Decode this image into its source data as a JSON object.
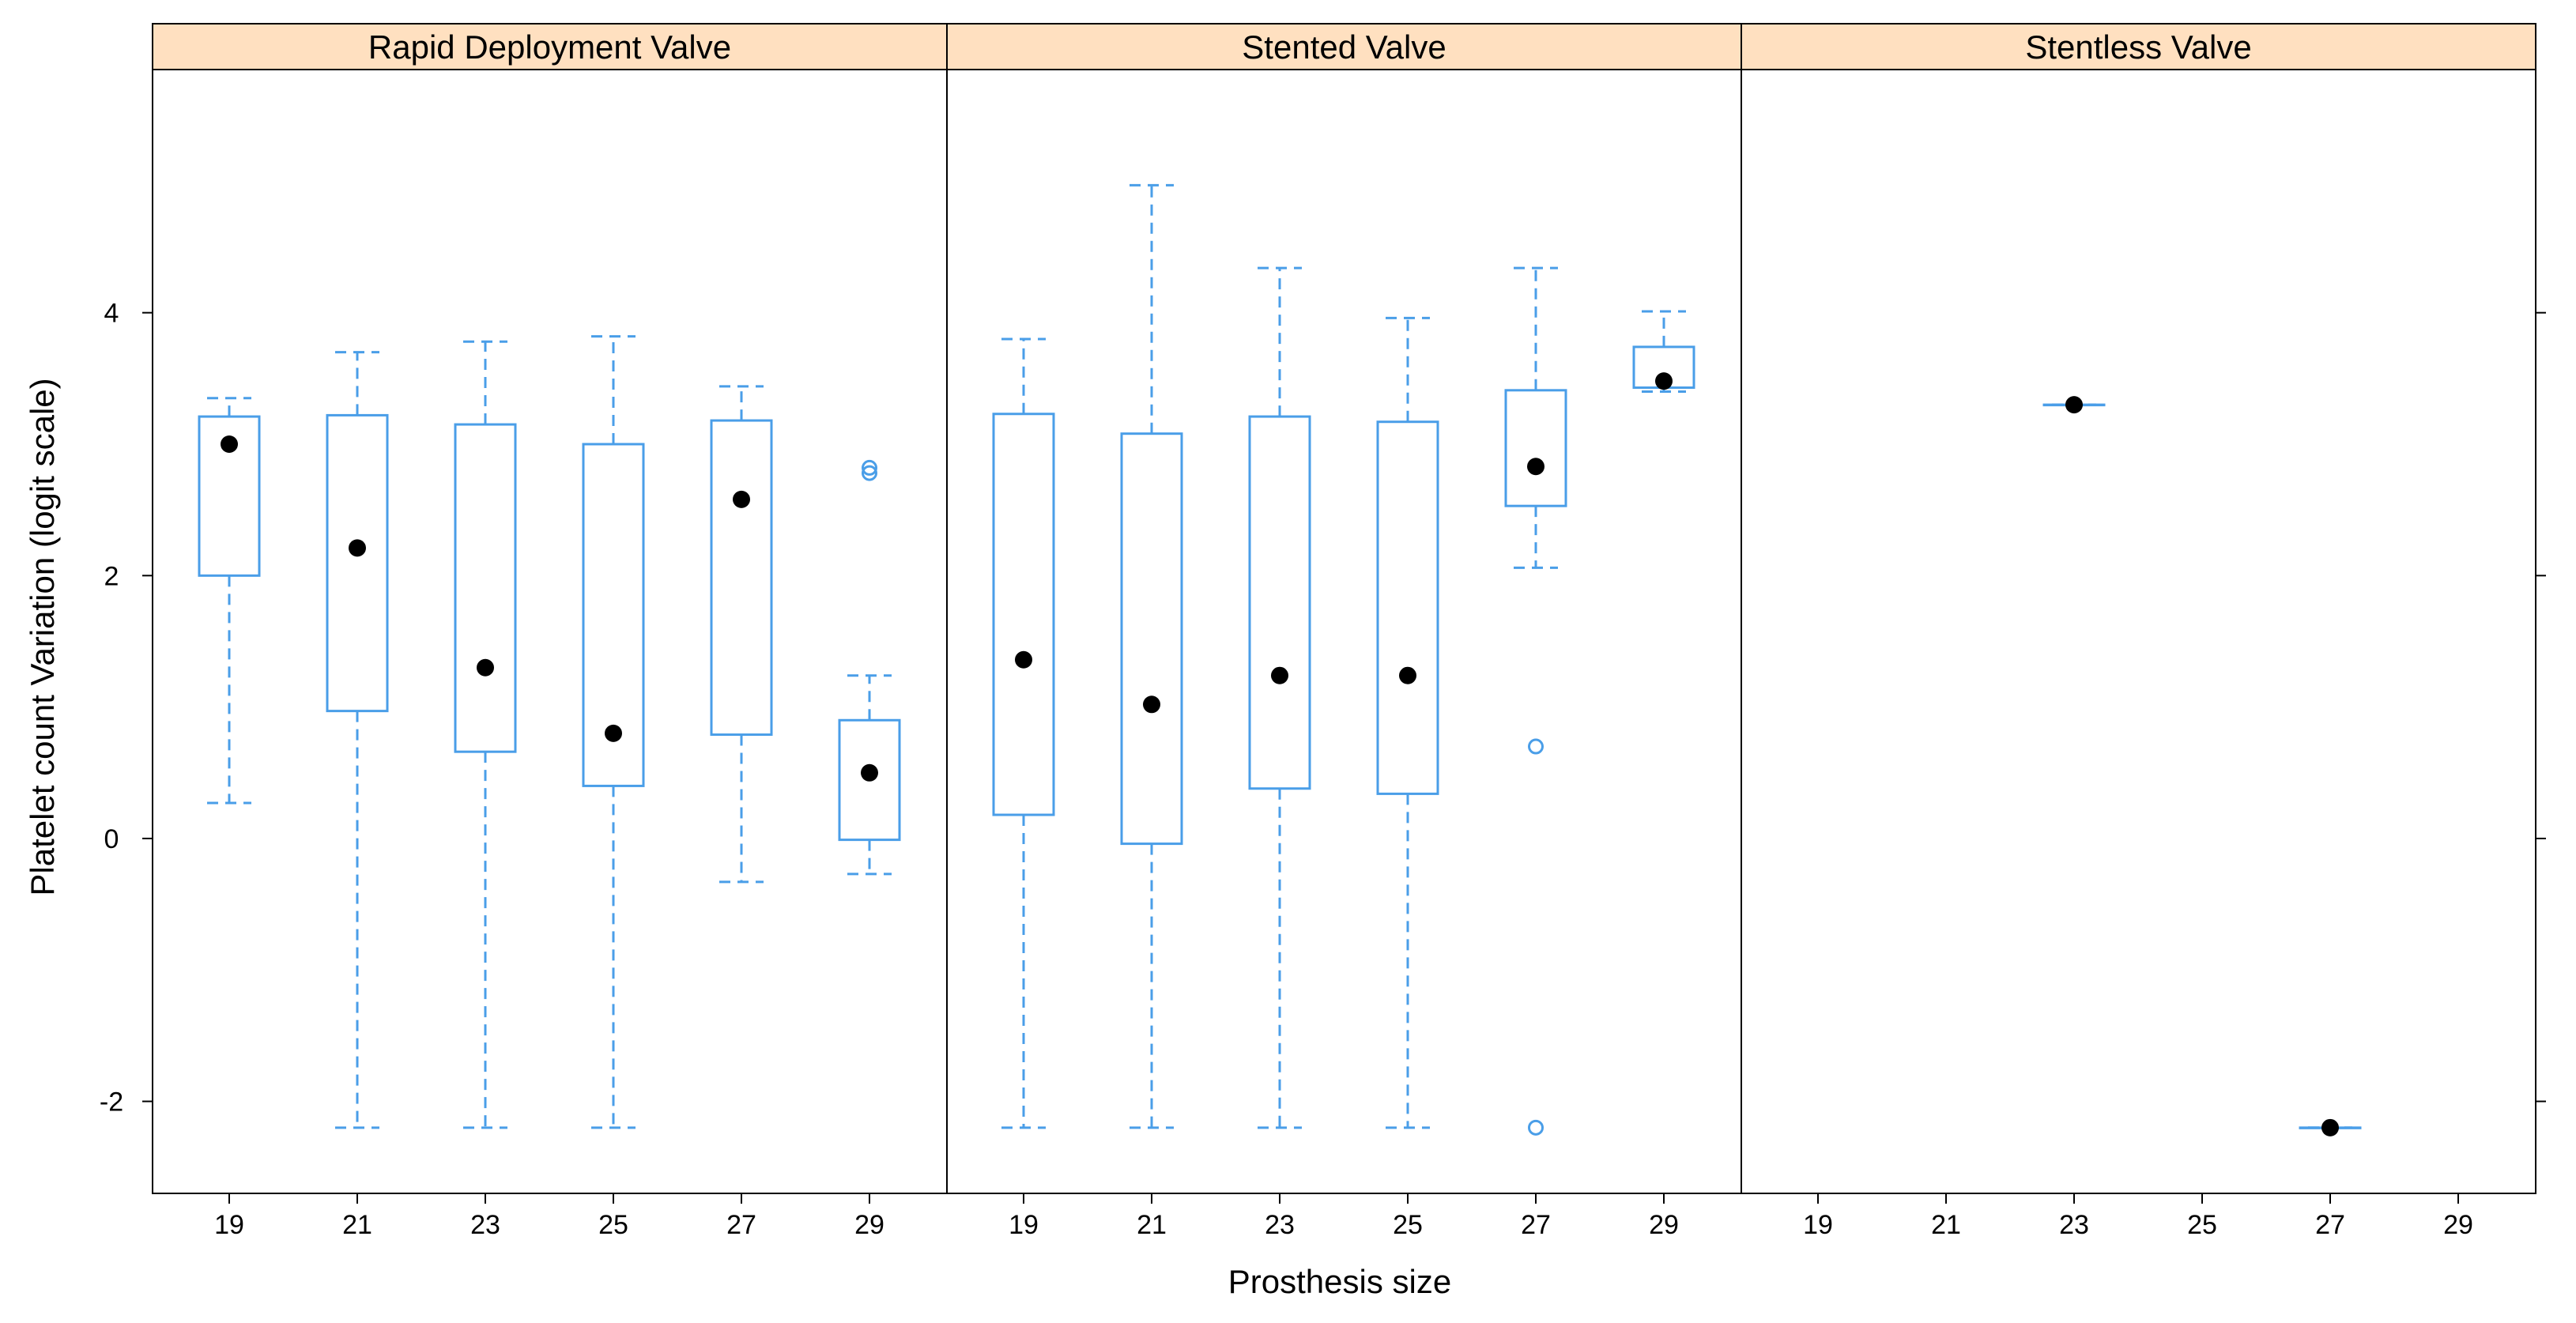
{
  "chart_data": {
    "type": "boxplot",
    "layout": "trellis, 3 panels side by side",
    "xlabel": "Prosthesis size",
    "ylabel": "Platelet count Variation (logit scale)",
    "categories": [
      "19",
      "21",
      "23",
      "25",
      "27",
      "29"
    ],
    "ylim": [
      -2.7,
      5.85
    ],
    "y_ticks": [
      -2,
      0,
      2,
      4
    ],
    "y_tick_labels": [
      "-2",
      "0",
      "2",
      "4"
    ],
    "colors": {
      "box": "#4a9ee8",
      "median_dot": "#000000",
      "strip_fill": "#ffe0c0",
      "frame": "#000000"
    },
    "panels": [
      {
        "name": "Rapid Deployment Valve",
        "boxes": [
          {
            "category": "19",
            "whisker_low": 0.27,
            "q1": 2.0,
            "median": 3.0,
            "q3": 3.21,
            "whisker_high": 3.35,
            "outliers": []
          },
          {
            "category": "21",
            "whisker_low": -2.2,
            "q1": 0.97,
            "median": 2.21,
            "q3": 3.22,
            "whisker_high": 3.7,
            "outliers": []
          },
          {
            "category": "23",
            "whisker_low": -2.2,
            "q1": 0.66,
            "median": 1.3,
            "q3": 3.15,
            "whisker_high": 3.78,
            "outliers": []
          },
          {
            "category": "25",
            "whisker_low": -2.2,
            "q1": 0.4,
            "median": 0.8,
            "q3": 3.0,
            "whisker_high": 3.82,
            "outliers": []
          },
          {
            "category": "27",
            "whisker_low": -0.33,
            "q1": 0.79,
            "median": 2.58,
            "q3": 3.18,
            "whisker_high": 3.44,
            "outliers": []
          },
          {
            "category": "29",
            "whisker_low": -0.27,
            "q1": -0.01,
            "median": 0.5,
            "q3": 0.9,
            "whisker_high": 1.24,
            "outliers": [
              2.78,
              2.82
            ]
          }
        ]
      },
      {
        "name": "Stented Valve",
        "boxes": [
          {
            "category": "19",
            "whisker_low": -2.2,
            "q1": 0.18,
            "median": 1.36,
            "q3": 3.23,
            "whisker_high": 3.8,
            "outliers": []
          },
          {
            "category": "21",
            "whisker_low": -2.2,
            "q1": -0.04,
            "median": 1.02,
            "q3": 3.08,
            "whisker_high": 4.97,
            "outliers": []
          },
          {
            "category": "23",
            "whisker_low": -2.2,
            "q1": 0.38,
            "median": 1.24,
            "q3": 3.21,
            "whisker_high": 4.34,
            "outliers": []
          },
          {
            "category": "25",
            "whisker_low": -2.2,
            "q1": 0.34,
            "median": 1.24,
            "q3": 3.17,
            "whisker_high": 3.96,
            "outliers": []
          },
          {
            "category": "27",
            "whisker_low": 2.06,
            "q1": 2.53,
            "median": 2.83,
            "q3": 3.41,
            "whisker_high": 4.34,
            "outliers": [
              0.7,
              -2.2
            ]
          },
          {
            "category": "29",
            "whisker_low": 3.4,
            "q1": 3.43,
            "median": 3.48,
            "q3": 3.74,
            "whisker_high": 4.01,
            "outliers": []
          }
        ]
      },
      {
        "name": "Stentless Valve",
        "boxes": [
          {
            "category": "23",
            "whisker_low": 3.3,
            "q1": 3.3,
            "median": 3.3,
            "q3": 3.3,
            "whisker_high": 3.3,
            "outliers": []
          },
          {
            "category": "27",
            "whisker_low": -2.2,
            "q1": -2.2,
            "median": -2.2,
            "q3": -2.2,
            "whisker_high": -2.2,
            "outliers": []
          }
        ]
      }
    ]
  }
}
